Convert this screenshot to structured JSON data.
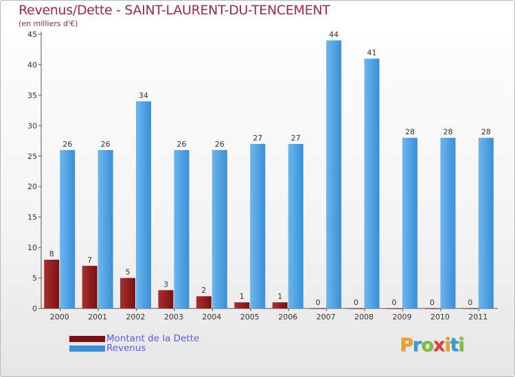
{
  "title": "Revenus/Dette - SAINT-LAURENT-DU-TENCEMENT",
  "subtitle": "(en milliers d'€)",
  "logo": {
    "text": "Proxiti",
    "letters": [
      "P",
      "r",
      "o",
      "x",
      "i",
      "t",
      "i"
    ],
    "colors": [
      "#f0a020",
      "#2f9ad8",
      "#7bbf3a",
      "#e53b3b",
      "#f0a020",
      "#2f9ad8",
      "#7bbf3a"
    ]
  },
  "colors": {
    "debt": "#7a1010",
    "debt_light": "#a83030",
    "revenue": "#3a8fd8",
    "revenue_light": "#6bb6ee",
    "axis": "#555555"
  },
  "chart_data": {
    "type": "bar",
    "title": "Revenus/Dette - SAINT-LAURENT-DU-TENCEMENT",
    "ylabel": "(en milliers d'€)",
    "xlabel": "",
    "categories": [
      "2000",
      "2001",
      "2002",
      "2003",
      "2004",
      "2005",
      "2006",
      "2007",
      "2008",
      "2009",
      "2010",
      "2011"
    ],
    "series": [
      {
        "name": "Montant de la Dette",
        "values": [
          8,
          7,
          5,
          3,
          2,
          1,
          1,
          0,
          0,
          0,
          0,
          0
        ]
      },
      {
        "name": "Revenus",
        "values": [
          26,
          26,
          34,
          26,
          26,
          27,
          27,
          44,
          41,
          28,
          28,
          28
        ]
      }
    ],
    "ylim": [
      0,
      45
    ],
    "yticks": [
      0,
      5,
      10,
      15,
      20,
      25,
      30,
      35,
      40,
      45
    ],
    "legend": "bottom-left"
  }
}
